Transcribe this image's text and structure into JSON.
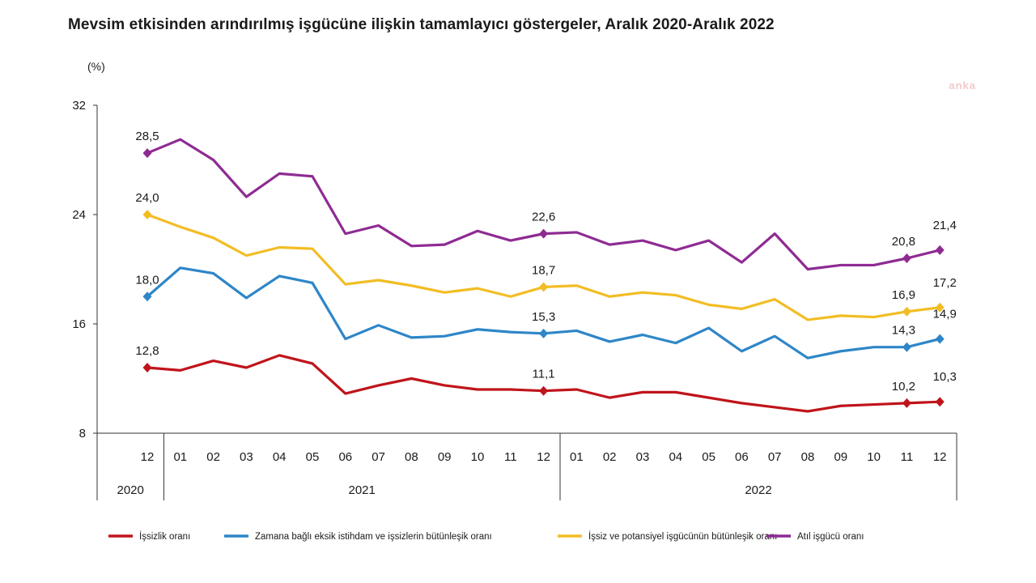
{
  "title": "Mevsim etkisinden arındırılmış işgücüne ilişkin tamamlayıcı göstergeler, Aralık 2020-Aralık 2022",
  "unit_label": "(%)",
  "watermark": "anka",
  "chart_data": {
    "type": "line",
    "title": "Mevsim etkisinden arındırılmış işgücüne ilişkin tamamlayıcı göstergeler, Aralık 2020-Aralık 2022",
    "ylabel": "(%)",
    "ylim": [
      8,
      32
    ],
    "yticks": [
      8,
      16,
      24,
      32
    ],
    "categories": [
      "12",
      "01",
      "02",
      "03",
      "04",
      "05",
      "06",
      "07",
      "08",
      "09",
      "10",
      "11",
      "12",
      "01",
      "02",
      "03",
      "04",
      "05",
      "06",
      "07",
      "08",
      "09",
      "10",
      "11",
      "12"
    ],
    "year_groups": [
      {
        "label": "2020",
        "start": 0,
        "end": 0
      },
      {
        "label": "2021",
        "start": 1,
        "end": 12
      },
      {
        "label": "2022",
        "start": 13,
        "end": 24
      }
    ],
    "legend_position": "bottom",
    "series": [
      {
        "name": "İşsizlik oranı",
        "color": "#c0141b",
        "values": [
          12.8,
          12.6,
          13.3,
          12.8,
          13.7,
          13.1,
          10.9,
          11.5,
          12.0,
          11.5,
          11.2,
          11.2,
          11.1,
          11.2,
          10.6,
          11.0,
          11.0,
          10.6,
          10.2,
          9.9,
          9.6,
          10.0,
          10.1,
          10.2,
          10.3
        ],
        "labels": {
          "0": "12,8",
          "12": "11,1",
          "23": "10,2",
          "24": "10,3"
        }
      },
      {
        "name": "Zamana bağlı eksik istihdam ve işsizlerin bütünleşik oranı",
        "color": "#2e86c8",
        "values": [
          18.0,
          20.1,
          19.7,
          17.9,
          19.5,
          19.0,
          14.9,
          15.9,
          15.0,
          15.1,
          15.6,
          15.4,
          15.3,
          15.5,
          14.7,
          15.2,
          14.6,
          15.7,
          14.0,
          15.1,
          13.5,
          14.0,
          14.3,
          14.3,
          14.9
        ],
        "labels": {
          "0": "18,0",
          "12": "15,3",
          "23": "14,3",
          "24": "14,9"
        }
      },
      {
        "name": "İşsiz ve potansiyel işgücünün bütünleşik oranı",
        "color": "#f2bd24",
        "values": [
          24.0,
          23.1,
          22.3,
          21.0,
          21.6,
          21.5,
          18.9,
          19.2,
          18.8,
          18.3,
          18.6,
          18.0,
          18.7,
          18.8,
          18.0,
          18.3,
          18.1,
          17.4,
          17.1,
          17.8,
          16.3,
          16.6,
          16.5,
          16.9,
          17.2
        ],
        "labels": {
          "0": "24,0",
          "12": "18,7",
          "23": "16,9",
          "24": "17,2"
        }
      },
      {
        "name": "Atıl işgücü oranı",
        "color": "#8e2b93",
        "values": [
          28.5,
          29.5,
          28.0,
          25.3,
          27.0,
          26.8,
          22.6,
          23.2,
          21.7,
          21.8,
          22.8,
          22.1,
          22.6,
          22.7,
          21.8,
          22.1,
          21.4,
          22.1,
          20.5,
          22.6,
          20.0,
          20.3,
          20.3,
          20.8,
          21.4
        ],
        "labels": {
          "0": "28,5",
          "12": "22,6",
          "23": "20,8",
          "24": "21,4"
        }
      }
    ]
  }
}
